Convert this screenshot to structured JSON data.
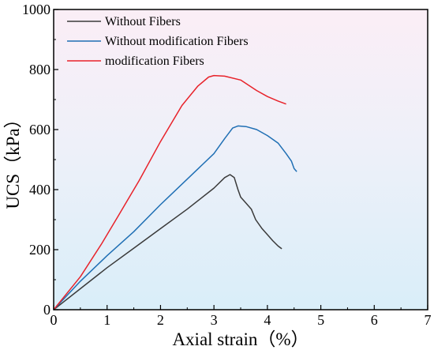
{
  "chart_data": {
    "type": "line",
    "xlabel": "Axial strain（%）",
    "ylabel": "UCS（kPa）",
    "xlim": [
      0,
      7
    ],
    "ylim": [
      0,
      1000
    ],
    "xticks": [
      "0",
      "1",
      "2",
      "3",
      "4",
      "5",
      "6",
      "7"
    ],
    "yticks": [
      "0",
      "200",
      "400",
      "600",
      "800",
      "1000"
    ],
    "grid": false,
    "legend_position": "top-left",
    "background": "pink-to-lightblue gradient",
    "series": [
      {
        "name": "Without Fibers",
        "color": "#3a3a3a",
        "points": [
          [
            0,
            0
          ],
          [
            0.5,
            70
          ],
          [
            1.0,
            140
          ],
          [
            1.5,
            205
          ],
          [
            2.0,
            270
          ],
          [
            2.5,
            335
          ],
          [
            3.0,
            405
          ],
          [
            3.2,
            440
          ],
          [
            3.3,
            450
          ],
          [
            3.38,
            440
          ],
          [
            3.45,
            400
          ],
          [
            3.5,
            375
          ],
          [
            3.6,
            355
          ],
          [
            3.7,
            335
          ],
          [
            3.78,
            300
          ],
          [
            3.9,
            270
          ],
          [
            4.0,
            250
          ],
          [
            4.1,
            230
          ],
          [
            4.2,
            212
          ],
          [
            4.27,
            203
          ]
        ]
      },
      {
        "name": "Without modification Fibers",
        "color": "#1f6fb4",
        "points": [
          [
            0,
            0
          ],
          [
            0.5,
            95
          ],
          [
            1.0,
            180
          ],
          [
            1.5,
            260
          ],
          [
            2.0,
            350
          ],
          [
            2.5,
            435
          ],
          [
            3.0,
            520
          ],
          [
            3.2,
            570
          ],
          [
            3.35,
            605
          ],
          [
            3.45,
            612
          ],
          [
            3.6,
            610
          ],
          [
            3.8,
            600
          ],
          [
            4.0,
            580
          ],
          [
            4.2,
            555
          ],
          [
            4.35,
            520
          ],
          [
            4.45,
            495
          ],
          [
            4.5,
            470
          ],
          [
            4.55,
            460
          ]
        ]
      },
      {
        "name": "modification Fibers",
        "color": "#e8222a",
        "points": [
          [
            0,
            0
          ],
          [
            0.5,
            110
          ],
          [
            0.9,
            220
          ],
          [
            1.2,
            310
          ],
          [
            1.6,
            430
          ],
          [
            2.0,
            560
          ],
          [
            2.4,
            680
          ],
          [
            2.7,
            745
          ],
          [
            2.9,
            775
          ],
          [
            3.0,
            780
          ],
          [
            3.2,
            778
          ],
          [
            3.5,
            765
          ],
          [
            3.8,
            730
          ],
          [
            4.0,
            710
          ],
          [
            4.2,
            695
          ],
          [
            4.35,
            685
          ]
        ]
      }
    ]
  }
}
